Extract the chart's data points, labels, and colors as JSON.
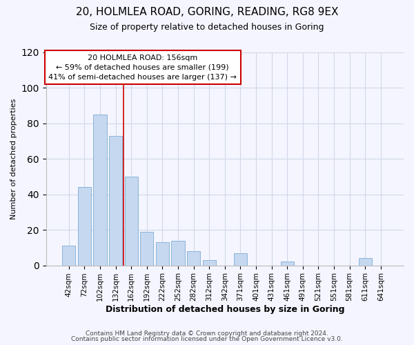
{
  "title1": "20, HOLMLEA ROAD, GORING, READING, RG8 9EX",
  "title2": "Size of property relative to detached houses in Goring",
  "xlabel": "Distribution of detached houses by size in Goring",
  "ylabel": "Number of detached properties",
  "categories": [
    "42sqm",
    "72sqm",
    "102sqm",
    "132sqm",
    "162sqm",
    "192sqm",
    "222sqm",
    "252sqm",
    "282sqm",
    "312sqm",
    "342sqm",
    "371sqm",
    "401sqm",
    "431sqm",
    "461sqm",
    "491sqm",
    "521sqm",
    "551sqm",
    "581sqm",
    "611sqm",
    "641sqm"
  ],
  "values": [
    11,
    44,
    85,
    73,
    50,
    19,
    13,
    14,
    8,
    3,
    0,
    7,
    0,
    0,
    2,
    0,
    0,
    0,
    0,
    4,
    0
  ],
  "bar_color": "#c5d8f0",
  "bar_edge_color": "#8ab4d8",
  "vline_color": "#cc0000",
  "annotation_title": "20 HOLMLEA ROAD: 156sqm",
  "annotation_line1": "← 59% of detached houses are smaller (199)",
  "annotation_line2": "41% of semi-detached houses are larger (137) →",
  "annotation_box_color": "white",
  "annotation_box_edge": "#cc0000",
  "ylim": [
    0,
    120
  ],
  "yticks": [
    0,
    20,
    40,
    60,
    80,
    100,
    120
  ],
  "footer1": "Contains HM Land Registry data © Crown copyright and database right 2024.",
  "footer2": "Contains public sector information licensed under the Open Government Licence v3.0.",
  "bg_color": "#f5f5ff",
  "grid_color": "#d0d8e8",
  "title1_fontsize": 11,
  "title2_fontsize": 9,
  "xlabel_fontsize": 9,
  "ylabel_fontsize": 8,
  "tick_fontsize": 7.5,
  "annotation_fontsize": 8,
  "footer_fontsize": 6.5
}
